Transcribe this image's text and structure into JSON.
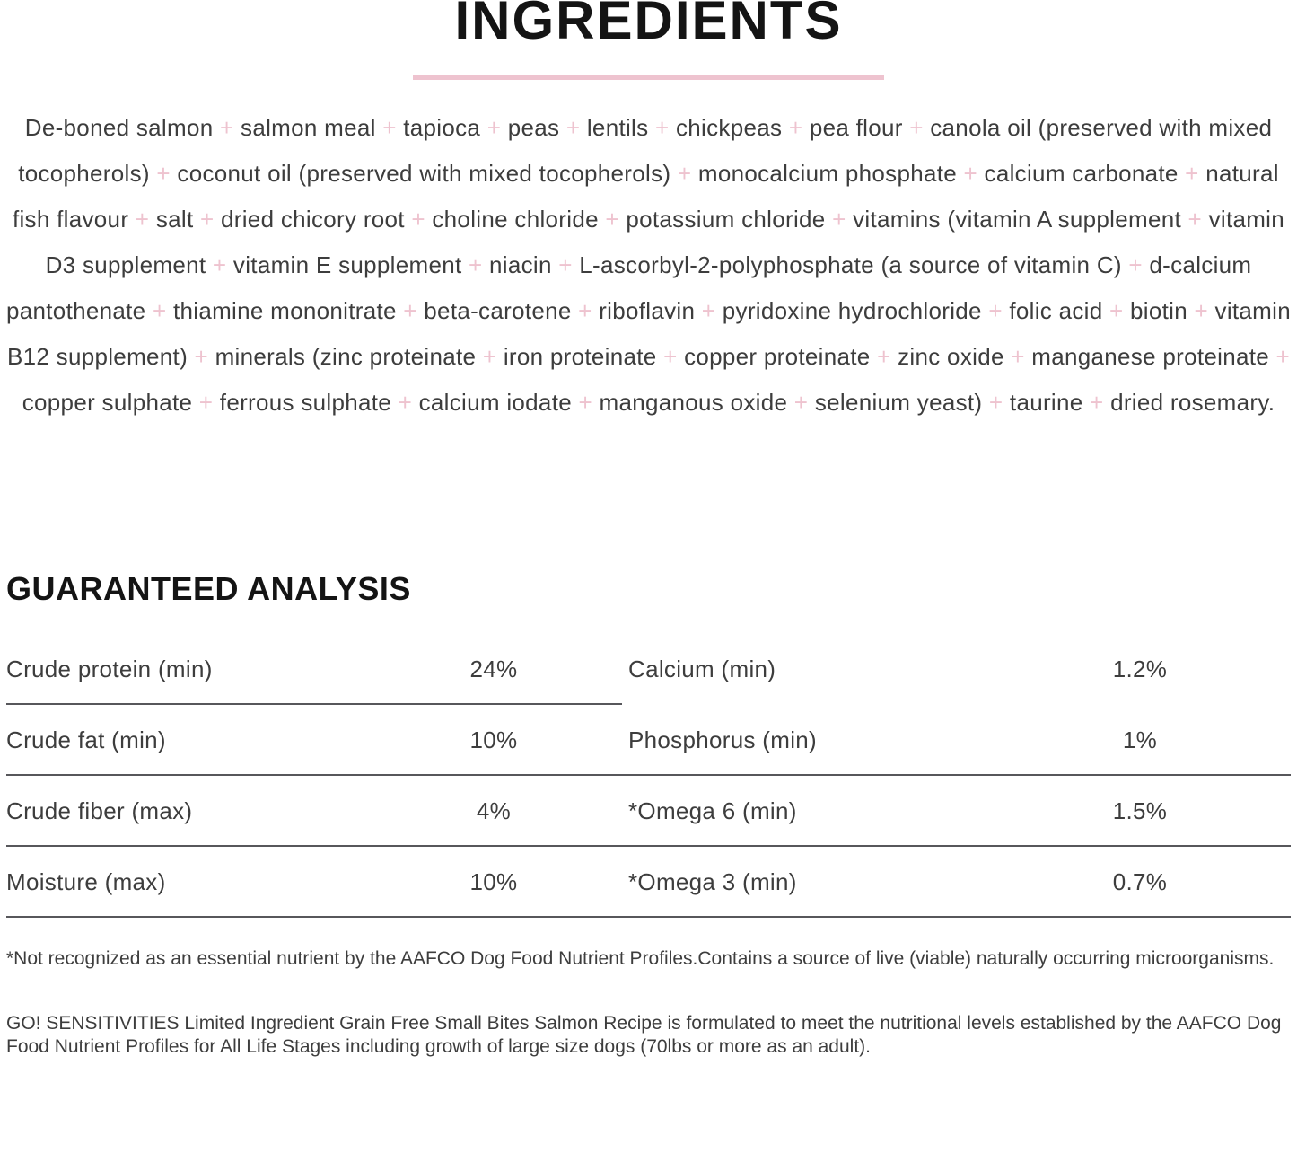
{
  "ingredients": {
    "title": "INGREDIENTS",
    "separator": "+",
    "items": [
      "De-boned salmon",
      "salmon meal",
      "tapioca",
      "peas",
      "lentils",
      "chickpeas",
      "pea flour",
      "canola oil (preserved with mixed tocopherols)",
      "coconut oil (preserved with mixed tocopherols)",
      "monocalcium phosphate",
      "calcium carbonate",
      "natural fish flavour",
      "salt",
      "dried chicory root",
      "choline chloride",
      "potassium chloride",
      "vitamins (vitamin A supplement",
      "vitamin D3 supplement",
      "vitamin E supplement",
      "niacin",
      "L-ascorbyl-2-polyphosphate (a source of vitamin C)",
      "d-calcium pantothenate",
      "thiamine mononitrate",
      "beta-carotene",
      "riboflavin",
      "pyridoxine hydrochloride",
      "folic acid",
      "biotin",
      "vitamin B12 supplement)",
      "minerals (zinc proteinate",
      "iron proteinate",
      "copper proteinate",
      "zinc oxide",
      "manganese proteinate",
      "copper sulphate",
      "ferrous sulphate",
      "calcium iodate",
      "manganous oxide",
      "selenium yeast)",
      "taurine",
      "dried rosemary."
    ]
  },
  "analysis": {
    "title": "GUARANTEED ANALYSIS",
    "rows": [
      {
        "left_label": "Crude protein (min)",
        "left_value": "24%",
        "right_label": "Calcium (min)",
        "right_value": "1.2%"
      },
      {
        "left_label": "Crude fat (min)",
        "left_value": "10%",
        "right_label": "Phosphorus (min)",
        "right_value": "1%"
      },
      {
        "left_label": "Crude fiber (max)",
        "left_value": "4%",
        "right_label": "*Omega 6 (min)",
        "right_value": "1.5%"
      },
      {
        "left_label": "Moisture (max)",
        "left_value": "10%",
        "right_label": "*Omega 3 (min)",
        "right_value": "0.7%"
      }
    ],
    "footnote": "*Not recognized as an essential nutrient by the AAFCO Dog Food Nutrient Profiles.Contains a source of live (viable) naturally occurring microorganisms."
  },
  "statement": "GO! SENSITIVITIES Limited Ingredient Grain Free Small Bites Salmon Recipe is formulated to meet the nutritional levels established by the AAFCO Dog Food Nutrient Profiles for All Life Stages including growth of large size dogs (70lbs or more as an adult).",
  "colors": {
    "accent_pink": "#eec3cf",
    "text": "#3d3d3d",
    "heading": "#141414",
    "divider": "#57575b"
  }
}
